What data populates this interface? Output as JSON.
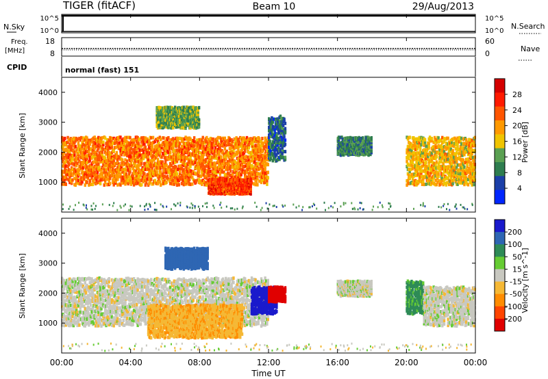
{
  "header": {
    "radar": "TIGER (fitACF)",
    "beam": "Beam 10",
    "date": "29/Aug/2013"
  },
  "top_strip": {
    "nsky_label": "N.Sky",
    "nsky_ticks": [
      "10^5",
      "10^0"
    ],
    "nsearch_label": "N.Search",
    "nsearch_ticks": [
      "10^5",
      "10^0"
    ],
    "freq_label": "Freq.",
    "freq_unit": "[MHz]",
    "freq_ticks": [
      "18",
      "8"
    ],
    "nave_label": "Nave",
    "nave_ticks": [
      "60",
      "0"
    ],
    "cpid_label": "CPID",
    "cpid_text": "normal (fast) 151"
  },
  "colors": {
    "power_scale": [
      "#0026ff",
      "#1b3fa8",
      "#2e7d4f",
      "#5aa052",
      "#f0c400",
      "#ff9900",
      "#ff5500",
      "#ff1a00",
      "#d40000"
    ],
    "velocity_scale": [
      "#1a1acc",
      "#2e66b3",
      "#2e8b57",
      "#66cc33",
      "#c8c8c0",
      "#f5b835",
      "#ff8c00",
      "#ff4500",
      "#e00000"
    ]
  },
  "chart_data": [
    {
      "type": "heatmap",
      "ylabel": "Slant Range [km]",
      "yticks": [
        "1000",
        "2000",
        "3000",
        "4000"
      ],
      "ylim": [
        0,
        4500
      ],
      "xlim_hours": [
        0,
        24
      ],
      "colorbar": {
        "label": "Power [dB]",
        "ticks": [
          "4",
          "8",
          "12",
          "16",
          "20",
          "24",
          "28"
        ],
        "range": [
          0,
          32
        ]
      },
      "echo_regions": [
        {
          "t_start_h": 0.0,
          "t_end_h": 12.0,
          "range_km": [
            900,
            2500
          ],
          "power_db": 22
        },
        {
          "t_start_h": 5.5,
          "t_end_h": 8.0,
          "range_km": [
            2800,
            3500
          ],
          "power_db": 12
        },
        {
          "t_start_h": 8.5,
          "t_end_h": 11.0,
          "range_km": [
            600,
            1100
          ],
          "power_db": 26
        },
        {
          "t_start_h": 12.0,
          "t_end_h": 13.0,
          "range_km": [
            1700,
            3200
          ],
          "power_db": 6
        },
        {
          "t_start_h": 16.0,
          "t_end_h": 18.0,
          "range_km": [
            1900,
            2500
          ],
          "power_db": 9
        },
        {
          "t_start_h": 20.0,
          "t_end_h": 24.0,
          "range_km": [
            900,
            2500
          ],
          "power_db": 18
        }
      ]
    },
    {
      "type": "heatmap",
      "ylabel": "Slant Range [km]",
      "yticks": [
        "1000",
        "2000",
        "3000",
        "4000"
      ],
      "ylim": [
        0,
        4500
      ],
      "xlim_hours": [
        0,
        24
      ],
      "colorbar": {
        "label": "Velocity [m s^-1]",
        "ticks": [
          "200",
          "100",
          "50",
          "15",
          "-15",
          "-50",
          "-100",
          "-200"
        ]
      },
      "echo_regions": [
        {
          "t_start_h": 0.0,
          "t_end_h": 12.0,
          "range_km": [
            900,
            2500
          ],
          "velocity_ms": 0
        },
        {
          "t_start_h": 5.0,
          "t_end_h": 10.5,
          "range_km": [
            500,
            1600
          ],
          "velocity_ms": -40
        },
        {
          "t_start_h": 6.0,
          "t_end_h": 8.5,
          "range_km": [
            2800,
            3500
          ],
          "velocity_ms": 180
        },
        {
          "t_start_h": 11.0,
          "t_end_h": 12.5,
          "range_km": [
            1300,
            2200
          ],
          "velocity_ms": 220
        },
        {
          "t_start_h": 12.0,
          "t_end_h": 13.0,
          "range_km": [
            1700,
            2200
          ],
          "velocity_ms": -220
        },
        {
          "t_start_h": 16.0,
          "t_end_h": 18.0,
          "range_km": [
            1900,
            2400
          ],
          "velocity_ms": 0
        },
        {
          "t_start_h": 20.0,
          "t_end_h": 21.0,
          "range_km": [
            1300,
            2400
          ],
          "velocity_ms": 60
        },
        {
          "t_start_h": 21.0,
          "t_end_h": 24.0,
          "range_km": [
            900,
            2200
          ],
          "velocity_ms": 0
        }
      ]
    }
  ],
  "xaxis": {
    "ticks": [
      "00:00",
      "04:00",
      "08:00",
      "12:00",
      "16:00",
      "20:00",
      "00:00"
    ],
    "label": "Time UT"
  }
}
